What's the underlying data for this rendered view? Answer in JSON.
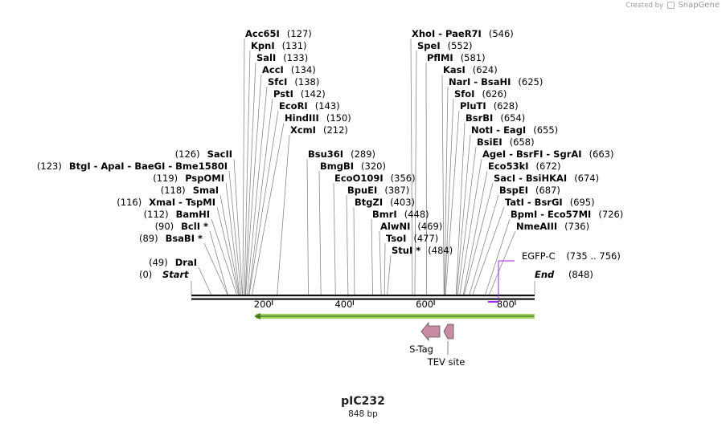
{
  "credit": {
    "prefix": "Created by",
    "brand": "SnapGene"
  },
  "plasmid": {
    "name": "pIC232",
    "length_label": "848 bp",
    "length": 848
  },
  "colors": {
    "feature_label": "#a020f0",
    "primer": "#a020f0",
    "orf": "#9bd45a",
    "feature": "#c98aa3"
  },
  "axis": {
    "ticks": [
      200,
      400,
      600,
      800
    ]
  },
  "ends": {
    "start": {
      "name": "Start",
      "pos": "(0)"
    },
    "end": {
      "name": "End",
      "pos": "(848)"
    }
  },
  "left_sites": [
    {
      "pos": "(123)",
      "name": "BtgI  - ApaI  - BaeGI  - Bme1580I",
      "bp": 123
    },
    {
      "pos": "(126)",
      "name": "SacII",
      "bp": 126
    },
    {
      "pos": "(119)",
      "name": "PspOMI",
      "bp": 119
    },
    {
      "pos": "(118)",
      "name": "SmaI",
      "bp": 118
    },
    {
      "pos": "(116)",
      "name": "XmaI  - TspMI",
      "bp": 116
    },
    {
      "pos": "(112)",
      "name": "BamHI",
      "bp": 112
    },
    {
      "pos": "(90)",
      "name": "BclI *",
      "bp": 90
    },
    {
      "pos": "(89)",
      "name": "BsaBI *",
      "bp": 89
    },
    {
      "pos": "(49)",
      "name": "DraI",
      "bp": 49
    }
  ],
  "right_sites": [
    {
      "name": "Acc65I",
      "pos": "(127)",
      "bp": 127
    },
    {
      "name": "KpnI",
      "pos": "(131)",
      "bp": 131
    },
    {
      "name": "SalI",
      "pos": "(133)",
      "bp": 133
    },
    {
      "name": "AccI",
      "pos": "(134)",
      "bp": 134
    },
    {
      "name": "SfcI",
      "pos": "(138)",
      "bp": 138
    },
    {
      "name": "PstI",
      "pos": "(142)",
      "bp": 142
    },
    {
      "name": "EcoRI",
      "pos": "(143)",
      "bp": 143
    },
    {
      "name": "HindIII",
      "pos": "(150)",
      "bp": 150
    },
    {
      "name": "XcmI",
      "pos": "(212)",
      "bp": 212
    },
    {
      "name": "Bsu36I",
      "pos": "(289)",
      "bp": 289
    },
    {
      "name": "BmgBI",
      "pos": "(320)",
      "bp": 320
    },
    {
      "name": "EcoO109I",
      "pos": "(356)",
      "bp": 356
    },
    {
      "name": "BpuEI",
      "pos": "(387)",
      "bp": 387
    },
    {
      "name": "BtgZI",
      "pos": "(403)",
      "bp": 403
    },
    {
      "name": "BmrI",
      "pos": "(448)",
      "bp": 448
    },
    {
      "name": "AlwNI",
      "pos": "(469)",
      "bp": 469
    },
    {
      "name": "TsoI",
      "pos": "(477)",
      "bp": 477
    },
    {
      "name": "StuI *",
      "pos": "(484)",
      "bp": 484
    },
    {
      "name": "XhoI  - PaeR7I",
      "pos": "(546)",
      "bp": 546
    },
    {
      "name": "SpeI",
      "pos": "(552)",
      "bp": 552
    },
    {
      "name": "PflMI",
      "pos": "(581)",
      "bp": 581
    },
    {
      "name": "KasI",
      "pos": "(624)",
      "bp": 624
    },
    {
      "name": "NarI  - BsaHI",
      "pos": "(625)",
      "bp": 625
    },
    {
      "name": "SfoI",
      "pos": "(626)",
      "bp": 626
    },
    {
      "name": "PluTI",
      "pos": "(628)",
      "bp": 628
    },
    {
      "name": "BsrBI",
      "pos": "(654)",
      "bp": 654
    },
    {
      "name": "NotI  - EagI",
      "pos": "(655)",
      "bp": 655
    },
    {
      "name": "BsiEI",
      "pos": "(658)",
      "bp": 658
    },
    {
      "name": "AgeI  - BsrFI  - SgrAI",
      "pos": "(663)",
      "bp": 663
    },
    {
      "name": "Eco53kI",
      "pos": "(672)",
      "bp": 672
    },
    {
      "name": "SacI  - BsiHKAI",
      "pos": "(674)",
      "bp": 674
    },
    {
      "name": "BspEI",
      "pos": "(687)",
      "bp": 687
    },
    {
      "name": "TatI  - BsrGI",
      "pos": "(695)",
      "bp": 695
    },
    {
      "name": "BpmI  - Eco57MI",
      "pos": "(726)",
      "bp": 726
    },
    {
      "name": "NmeAIII",
      "pos": "(736)",
      "bp": 736
    }
  ],
  "primer": {
    "name": "EGFP-C",
    "range": "(735 .. 756)",
    "start": 735,
    "end": 756
  },
  "features": [
    {
      "name": "S-Tag",
      "type": "arrow-left"
    },
    {
      "name": "TEV site",
      "type": "arrow-left-small"
    }
  ]
}
